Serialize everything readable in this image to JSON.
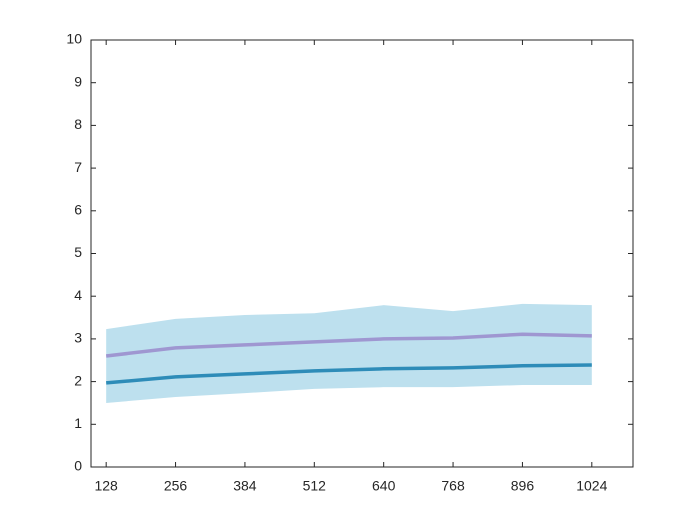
{
  "chart_data": {
    "type": "line",
    "x": [
      128,
      256,
      384,
      512,
      640,
      768,
      896,
      1024
    ],
    "band": {
      "color": "#bde0ee",
      "upper": [
        3.23,
        3.47,
        3.56,
        3.6,
        3.79,
        3.65,
        3.82,
        3.79
      ],
      "lower": [
        1.5,
        1.64,
        1.73,
        1.83,
        1.87,
        1.87,
        1.92,
        1.92
      ]
    },
    "series": [
      {
        "color": "#9f97d1",
        "values": [
          2.6,
          2.79,
          2.86,
          2.93,
          3.0,
          3.02,
          3.11,
          3.07
        ]
      },
      {
        "color": "#2e8cb8",
        "values": [
          1.97,
          2.11,
          2.18,
          2.25,
          2.3,
          2.32,
          2.37,
          2.39
        ]
      }
    ],
    "xlim": [
      100,
      1100
    ],
    "xticks": [
      128,
      256,
      384,
      512,
      640,
      768,
      896,
      1024
    ],
    "ylim": [
      0,
      10
    ],
    "yticks": [
      0,
      1,
      2,
      3,
      4,
      5,
      6,
      7,
      8,
      9,
      10
    ]
  }
}
